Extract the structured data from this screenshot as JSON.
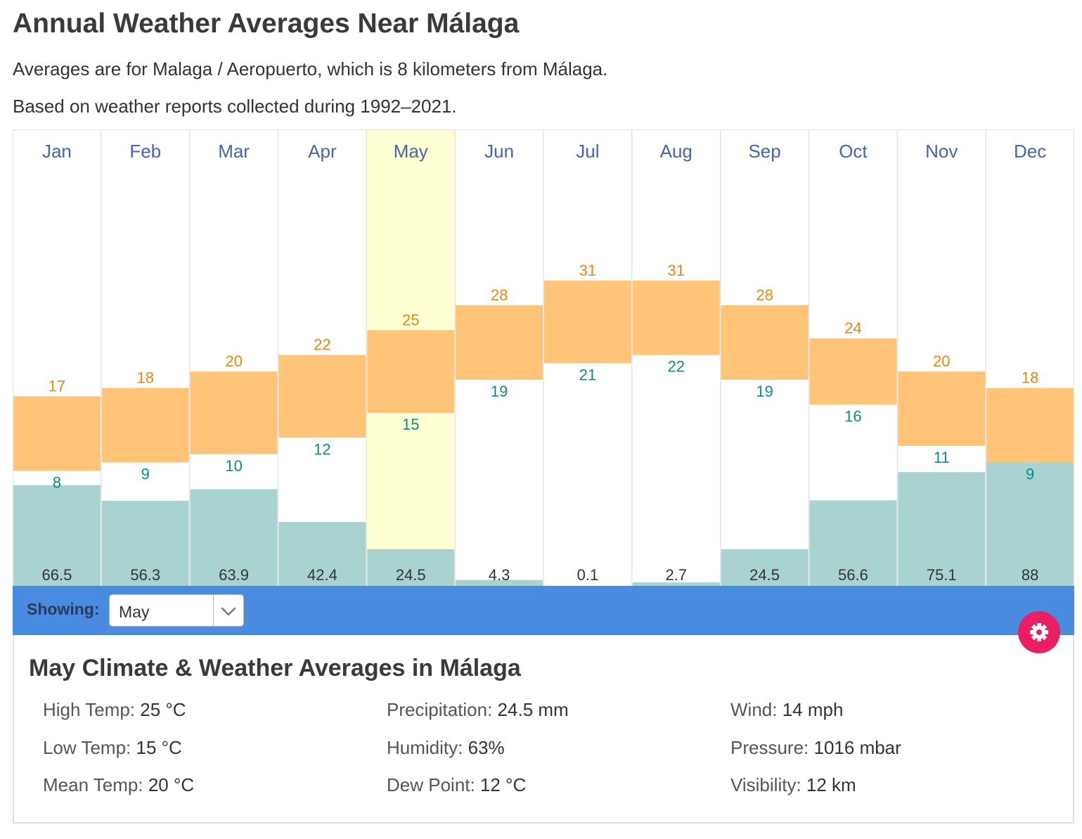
{
  "page": {
    "title": "Annual Weather Averages Near Málaga",
    "line1": "Averages are for Malaga / Aeropuerto, which is 8 kilometers from Málaga.",
    "line2": "Based on weather reports collected during 1992–2021."
  },
  "chart_data": {
    "type": "bar",
    "title": "Annual Weather Averages Near Málaga",
    "categories": [
      "Jan",
      "Feb",
      "Mar",
      "Apr",
      "May",
      "Jun",
      "Jul",
      "Aug",
      "Sep",
      "Oct",
      "Nov",
      "Dec"
    ],
    "selected": "May",
    "series": [
      {
        "name": "High Temp (°C)",
        "values": [
          17,
          18,
          20,
          22,
          25,
          28,
          31,
          31,
          28,
          24,
          20,
          18
        ]
      },
      {
        "name": "Low Temp (°C)",
        "values": [
          8,
          9,
          10,
          12,
          15,
          19,
          21,
          22,
          19,
          16,
          11,
          9
        ]
      },
      {
        "name": "Precipitation (mm)",
        "values": [
          "66.5",
          "56.3",
          "63.9",
          "42.4",
          "24.5",
          "4.3",
          "0.1",
          "2.7",
          "24.5",
          "56.6",
          "75.1",
          "88"
        ]
      }
    ],
    "temp_range": [
      -6,
      40
    ],
    "precip_range": [
      0,
      300
    ],
    "colors": {
      "temp_bar": "#ffc478",
      "precip_bar": "#a8d3d1",
      "selected_bg": "#ffffd4",
      "month_text": "#4a63a8",
      "high_text": "#e8870e",
      "low_text": "#0d8a8a",
      "grid": "#e3e3e3"
    }
  },
  "controls": {
    "showing_label": "Showing:",
    "selected_month": "May",
    "settings_icon": "gear-icon"
  },
  "details": {
    "title": "May Climate & Weather Averages in Málaga",
    "stats": {
      "high_temp": {
        "label": "High Temp:",
        "value": "25 °C"
      },
      "low_temp": {
        "label": "Low Temp:",
        "value": "15 °C"
      },
      "mean_temp": {
        "label": "Mean Temp:",
        "value": "20 °C"
      },
      "precipitation": {
        "label": "Precipitation:",
        "value": "24.5 mm"
      },
      "humidity": {
        "label": "Humidity:",
        "value": "63%"
      },
      "dew_point": {
        "label": "Dew Point:",
        "value": "12 °C"
      },
      "wind": {
        "label": "Wind:",
        "value": "14 mph"
      },
      "pressure": {
        "label": "Pressure:",
        "value": "1016 mbar"
      },
      "visibility": {
        "label": "Visibility:",
        "value": "12 km"
      }
    }
  }
}
